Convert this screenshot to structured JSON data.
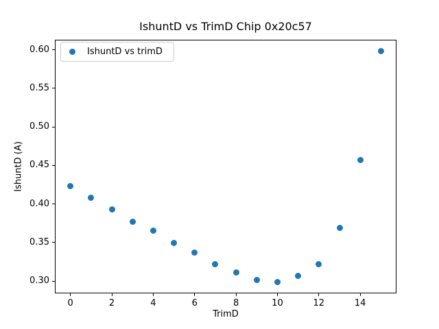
{
  "chart_data": {
    "type": "scatter",
    "title": "IshuntD vs TrimD Chip 0x20c57",
    "xlabel": "TrimD",
    "ylabel": "IshuntD (A)",
    "series": [
      {
        "name": "IshuntD vs trimD",
        "color": "#1f77b4",
        "x": [
          0,
          1,
          2,
          3,
          4,
          5,
          6,
          7,
          8,
          9,
          10,
          11,
          12,
          13,
          14,
          15
        ],
        "y": [
          0.423,
          0.408,
          0.393,
          0.377,
          0.365,
          0.349,
          0.337,
          0.322,
          0.311,
          0.301,
          0.299,
          0.307,
          0.322,
          0.369,
          0.457,
          0.598
        ]
      }
    ],
    "xlim": [
      -0.75,
      15.75
    ],
    "ylim": [
      0.284,
      0.613
    ],
    "xticks": [
      0,
      2,
      4,
      6,
      8,
      10,
      12,
      14
    ],
    "yticks": [
      0.3,
      0.35,
      0.4,
      0.45,
      0.5,
      0.55,
      0.6
    ],
    "ytick_decimals": 2,
    "grid": false,
    "legend_position": "upper-left",
    "background_color": "#ffffff",
    "frame_color": "#000000"
  }
}
